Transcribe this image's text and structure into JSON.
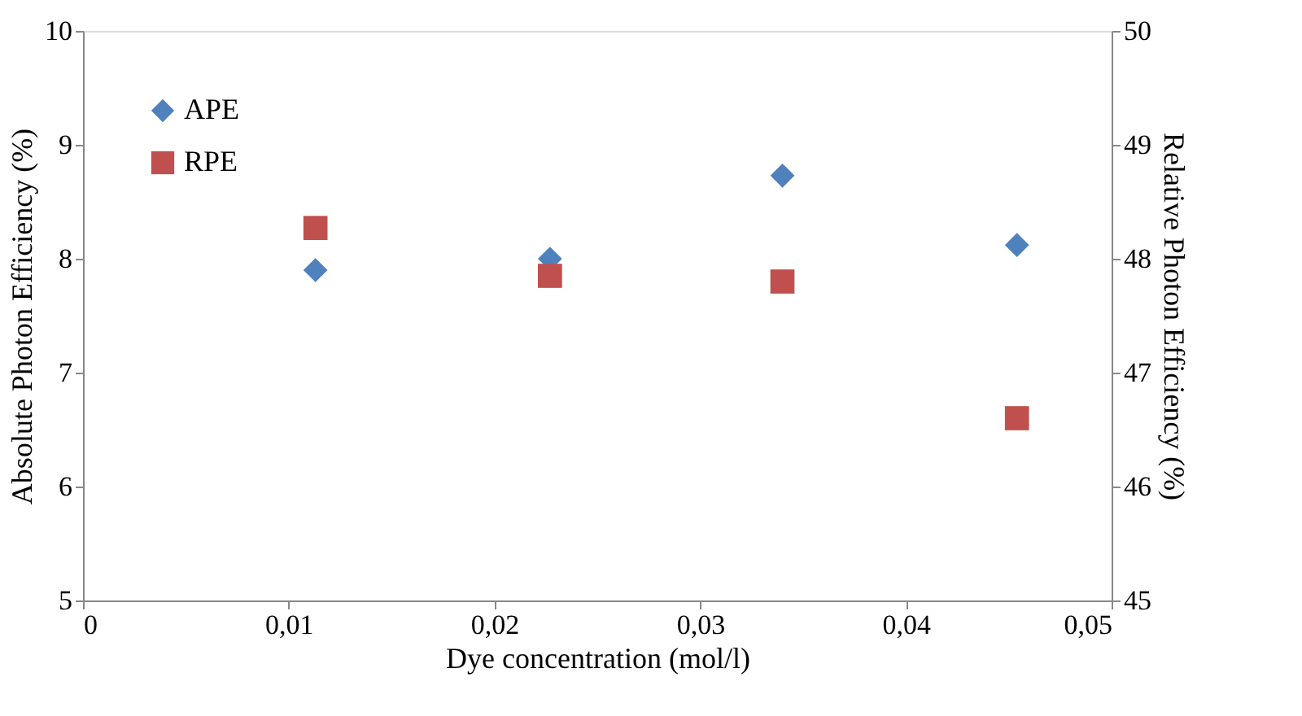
{
  "chart_data": {
    "type": "scatter",
    "xlabel": "Dye concentration (mol/l)",
    "ylabel": "Absolute Photon Efficiency (%)",
    "y2label": "Relative Photon Efficiency (%)",
    "x": [
      0.0113,
      0.0227,
      0.034,
      0.0454
    ],
    "series": [
      {
        "name": "APE",
        "color": "#4f81bd",
        "marker": "diamond",
        "values": [
          7.9,
          8.0,
          8.73,
          8.12
        ]
      },
      {
        "name": "RPE",
        "color": "#c0504d",
        "marker": "square",
        "axis": "y2",
        "values": [
          48.27,
          47.85,
          47.8,
          46.6
        ]
      }
    ],
    "xlim": [
      0,
      0.05
    ],
    "xticks": [
      0,
      {
        "value": 0.01,
        "label": "0,01"
      },
      {
        "value": 0.02,
        "label": "0,02"
      },
      {
        "value": 0.03,
        "label": "0,03"
      },
      {
        "value": 0.04,
        "label": "0,04"
      },
      {
        "value": 0.05,
        "label": "0,05"
      }
    ],
    "ylim": [
      5,
      10
    ],
    "yticks": [
      5,
      6,
      7,
      8,
      9,
      10
    ],
    "y2lim": [
      45,
      50
    ],
    "y2ticks": [
      45,
      46,
      47,
      48,
      49,
      50
    ],
    "grid": false,
    "legend": "top left"
  }
}
